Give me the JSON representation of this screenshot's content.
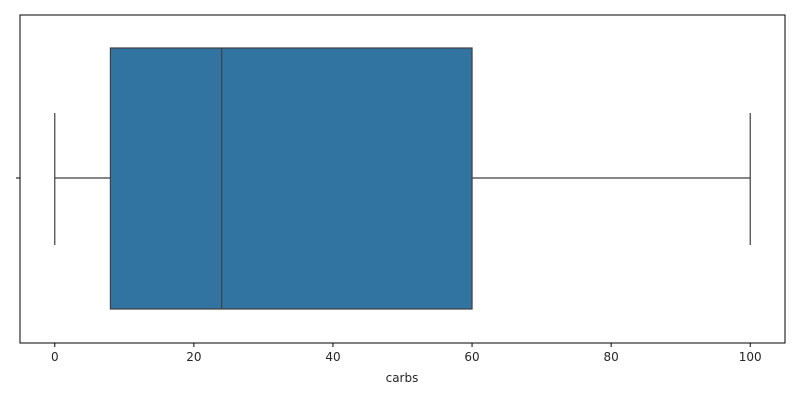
{
  "chart_data": {
    "type": "boxplot",
    "orientation": "horizontal",
    "xlabel": "carbs",
    "ylabel": "",
    "title": "",
    "xlim": [
      -5,
      105
    ],
    "xticks": [
      0,
      20,
      40,
      60,
      80,
      100
    ],
    "xtick_labels": [
      "0",
      "20",
      "40",
      "60",
      "80",
      "100"
    ],
    "box": {
      "min": 0,
      "q1": 8,
      "median": 24,
      "q3": 60,
      "max": 100
    },
    "grid": false,
    "colors": {
      "box_fill": "#3274a1",
      "lines": "#3f3f3f",
      "frame": "#000000",
      "text": "#262626"
    }
  }
}
